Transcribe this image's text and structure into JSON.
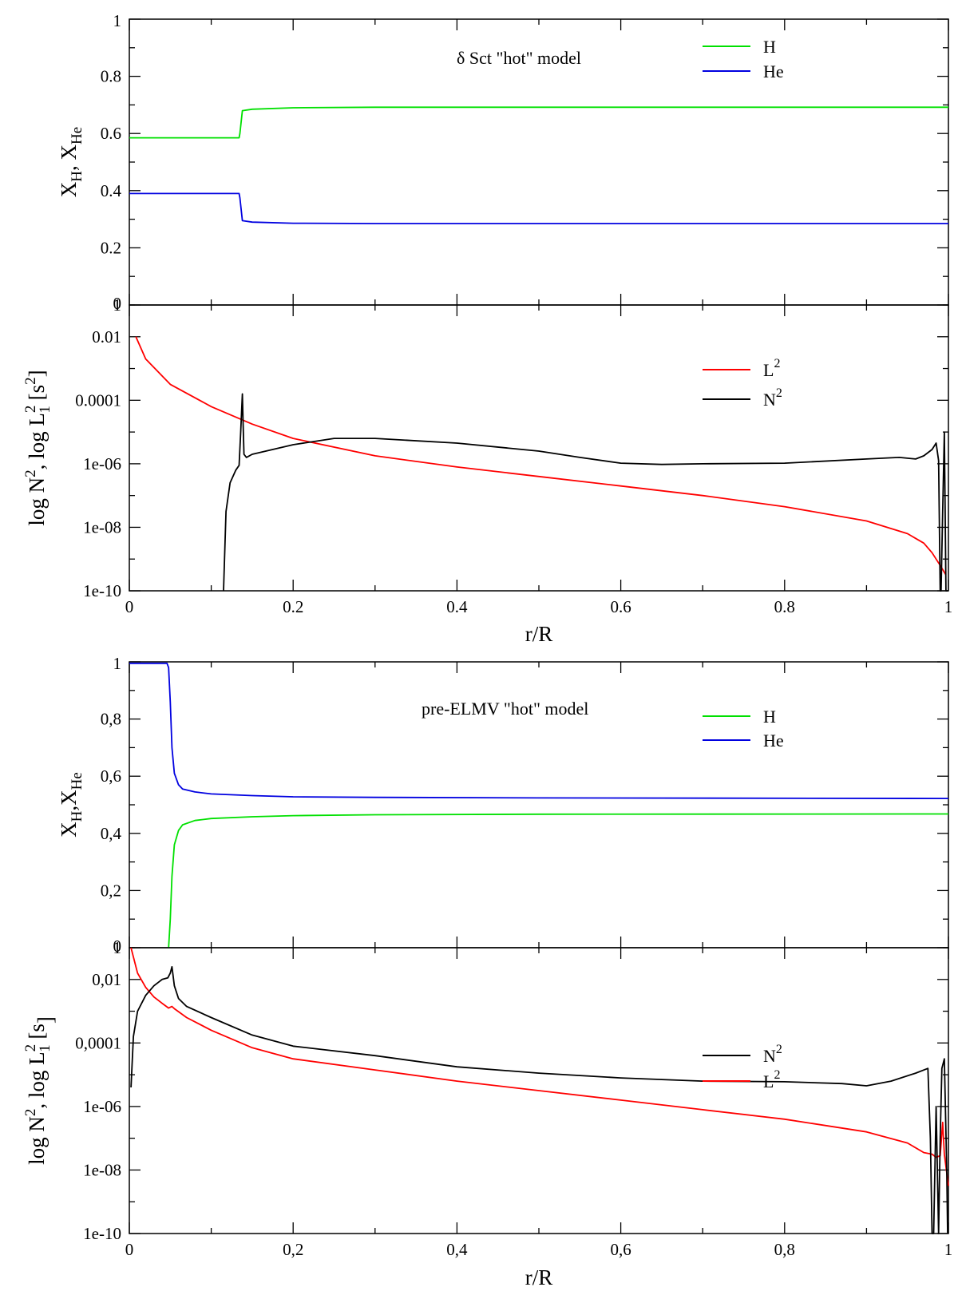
{
  "chart_data": [
    {
      "id": "p1",
      "type": "line",
      "title": "δ Sct \"hot\" model",
      "xlabel": "",
      "ylabel": {
        "base1": "X",
        "sub1": "H",
        "sep": ", X",
        "sub2": "He"
      },
      "xlim": [
        0,
        1
      ],
      "ylim": [
        0,
        1
      ],
      "yscale": "linear",
      "xticks": [],
      "yticks": [
        {
          "v": 0,
          "t": "0"
        },
        {
          "v": 0.2,
          "t": "0.2"
        },
        {
          "v": 0.4,
          "t": "0.4"
        },
        {
          "v": 0.6,
          "t": "0.6"
        },
        {
          "v": 0.8,
          "t": "0.8"
        },
        {
          "v": 1,
          "t": "1"
        }
      ],
      "legend": [
        {
          "label": "H",
          "sup": "",
          "color": "#00e000"
        },
        {
          "label": "He",
          "sup": "",
          "color": "#0000e0"
        }
      ],
      "legend_placement": "top-right",
      "series": [
        {
          "name": "H",
          "color": "#00e000",
          "x": [
            0,
            0.134,
            0.135,
            0.138,
            0.15,
            0.2,
            0.3,
            0.5,
            1.0
          ],
          "y": [
            0.585,
            0.585,
            0.6,
            0.68,
            0.685,
            0.69,
            0.692,
            0.692,
            0.692
          ]
        },
        {
          "name": "He",
          "color": "#0000e0",
          "x": [
            0,
            0.134,
            0.135,
            0.138,
            0.15,
            0.2,
            0.3,
            0.5,
            1.0
          ],
          "y": [
            0.39,
            0.39,
            0.375,
            0.295,
            0.29,
            0.286,
            0.285,
            0.285,
            0.285
          ]
        }
      ]
    },
    {
      "id": "p2",
      "type": "line",
      "title": "",
      "xlabel": "r/R",
      "ylabel": {
        "main": "log N",
        "sup1": "2",
        "mid": ", log L",
        "sup2": "2",
        "sub2": "1",
        "unit": " [s",
        "sup3": "2",
        "end": "]"
      },
      "xlim": [
        0,
        1
      ],
      "ylim": [
        -10,
        -1
      ],
      "yscale": "log10",
      "xticks": [
        {
          "v": 0,
          "t": "0"
        },
        {
          "v": 0.2,
          "t": "0.2"
        },
        {
          "v": 0.4,
          "t": "0.4"
        },
        {
          "v": 0.6,
          "t": "0.6"
        },
        {
          "v": 0.8,
          "t": "0.8"
        },
        {
          "v": 1,
          "t": "1"
        }
      ],
      "yticks": [
        {
          "v": -10,
          "t": "1e-10"
        },
        {
          "v": -8,
          "t": "1e-08"
        },
        {
          "v": -6,
          "t": "1e-06"
        },
        {
          "v": -4,
          "t": "0.0001"
        },
        {
          "v": -2,
          "t": "0.01"
        },
        {
          "v": -1,
          "t": "1"
        }
      ],
      "legend": [
        {
          "label": "L",
          "sup": "2",
          "color": "#ff0000"
        },
        {
          "label": "N",
          "sup": "2",
          "color": "#000000"
        }
      ],
      "legend_placement": "top-right",
      "series": [
        {
          "name": "L2",
          "color": "#ff0000",
          "x": [
            0.008,
            0.02,
            0.05,
            0.1,
            0.15,
            0.2,
            0.3,
            0.4,
            0.5,
            0.6,
            0.7,
            0.8,
            0.9,
            0.95,
            0.97,
            0.98,
            0.99,
            0.997
          ],
          "y": [
            -2.0,
            -2.7,
            -3.5,
            -4.2,
            -4.75,
            -5.2,
            -5.75,
            -6.1,
            -6.4,
            -6.7,
            -7.0,
            -7.35,
            -7.8,
            -8.2,
            -8.5,
            -8.8,
            -9.2,
            -9.5
          ]
        },
        {
          "name": "N2",
          "color": "#000000",
          "x": [
            0.115,
            0.118,
            0.123,
            0.13,
            0.134,
            0.136,
            0.138,
            0.139,
            0.14,
            0.143,
            0.15,
            0.2,
            0.25,
            0.3,
            0.4,
            0.5,
            0.55,
            0.6,
            0.65,
            0.7,
            0.8,
            0.9,
            0.94,
            0.96,
            0.97,
            0.98,
            0.985,
            0.988,
            0.99,
            0.991,
            0.993,
            0.995,
            0.997,
            0.999
          ],
          "y": [
            -10,
            -7.5,
            -6.6,
            -6.2,
            -6.05,
            -5.0,
            -3.8,
            -4.8,
            -5.7,
            -5.8,
            -5.7,
            -5.4,
            -5.2,
            -5.2,
            -5.35,
            -5.6,
            -5.8,
            -5.98,
            -6.02,
            -6.0,
            -5.98,
            -5.85,
            -5.8,
            -5.85,
            -5.75,
            -5.55,
            -5.35,
            -5.9,
            -10,
            -10,
            -7.5,
            -5.0,
            -10,
            -10
          ]
        }
      ]
    },
    {
      "id": "p3",
      "type": "line",
      "title": "pre-ELMV \"hot\" model",
      "xlabel": "",
      "ylabel": {
        "base1": "X",
        "sub1": "H",
        "sep": ",X",
        "sub2": "He"
      },
      "xlim": [
        0,
        1
      ],
      "ylim": [
        0,
        1
      ],
      "yscale": "linear",
      "xticks": [],
      "yticks": [
        {
          "v": 0,
          "t": "0"
        },
        {
          "v": 0.2,
          "t": "0,2"
        },
        {
          "v": 0.4,
          "t": "0,4"
        },
        {
          "v": 0.6,
          "t": "0,6"
        },
        {
          "v": 0.8,
          "t": "0,8"
        },
        {
          "v": 1,
          "t": "1"
        }
      ],
      "legend": [
        {
          "label": "H",
          "sup": "",
          "color": "#00e000"
        },
        {
          "label": "He",
          "sup": "",
          "color": "#0000e0"
        }
      ],
      "legend_placement": "top-right",
      "series": [
        {
          "name": "H",
          "color": "#00e000",
          "x": [
            0.048,
            0.05,
            0.052,
            0.055,
            0.06,
            0.065,
            0.08,
            0.1,
            0.15,
            0.2,
            0.3,
            0.5,
            1.0
          ],
          "y": [
            0,
            0.1,
            0.25,
            0.36,
            0.41,
            0.43,
            0.445,
            0.452,
            0.458,
            0.462,
            0.465,
            0.467,
            0.468
          ]
        },
        {
          "name": "He",
          "color": "#0000e0",
          "x": [
            0,
            0.046,
            0.048,
            0.05,
            0.052,
            0.055,
            0.06,
            0.065,
            0.08,
            0.1,
            0.15,
            0.2,
            0.3,
            0.5,
            1.0
          ],
          "y": [
            0.995,
            0.995,
            0.98,
            0.86,
            0.7,
            0.61,
            0.57,
            0.555,
            0.545,
            0.538,
            0.532,
            0.528,
            0.526,
            0.524,
            0.522
          ]
        }
      ]
    },
    {
      "id": "p4",
      "type": "line",
      "title": "",
      "xlabel": "r/R",
      "ylabel": {
        "main": "log N",
        "sup1": "2",
        "mid": ", log L",
        "sup2": "2",
        "sub2": "1",
        "unit": " [s",
        "sup3": "",
        "end": "]"
      },
      "xlim": [
        0,
        1
      ],
      "ylim": [
        -10,
        -1
      ],
      "yscale": "log10",
      "xticks": [
        {
          "v": 0,
          "t": "0"
        },
        {
          "v": 0.2,
          "t": "0,2"
        },
        {
          "v": 0.4,
          "t": "0,4"
        },
        {
          "v": 0.6,
          "t": "0,6"
        },
        {
          "v": 0.8,
          "t": "0,8"
        },
        {
          "v": 1,
          "t": "1"
        }
      ],
      "yticks": [
        {
          "v": -10,
          "t": "1e-10"
        },
        {
          "v": -8,
          "t": "1e-08"
        },
        {
          "v": -6,
          "t": "1e-06"
        },
        {
          "v": -4,
          "t": "0,0001"
        },
        {
          "v": -2,
          "t": "0,01"
        },
        {
          "v": -1,
          "t": "1"
        }
      ],
      "legend": [
        {
          "label": "N",
          "sup": "2",
          "color": "#000000"
        },
        {
          "label": "L",
          "sup": "2",
          "color": "#ff0000"
        }
      ],
      "legend_placement": "right",
      "series": [
        {
          "name": "L2",
          "color": "#ff0000",
          "x": [
            0.002,
            0.01,
            0.02,
            0.03,
            0.04,
            0.048,
            0.052,
            0.055,
            0.07,
            0.1,
            0.15,
            0.2,
            0.3,
            0.4,
            0.5,
            0.6,
            0.7,
            0.8,
            0.9,
            0.95,
            0.97,
            0.98,
            0.985,
            0.99,
            0.993,
            0.995,
            1.0
          ],
          "y": [
            -1.0,
            -1.8,
            -2.25,
            -2.55,
            -2.75,
            -2.9,
            -2.85,
            -2.92,
            -3.2,
            -3.6,
            -4.15,
            -4.5,
            -4.85,
            -5.2,
            -5.5,
            -5.8,
            -6.1,
            -6.4,
            -6.8,
            -7.15,
            -7.45,
            -7.5,
            -7.6,
            -7.55,
            -6.5,
            -7.5,
            -8.5
          ]
        },
        {
          "name": "N2",
          "color": "#000000",
          "x": [
            0.002,
            0.005,
            0.01,
            0.02,
            0.03,
            0.04,
            0.047,
            0.05,
            0.052,
            0.055,
            0.06,
            0.07,
            0.1,
            0.15,
            0.2,
            0.3,
            0.4,
            0.5,
            0.6,
            0.7,
            0.8,
            0.87,
            0.9,
            0.93,
            0.96,
            0.975,
            0.978,
            0.98,
            0.982,
            0.985,
            0.988,
            0.99,
            0.992,
            0.995,
            0.998,
            0.999
          ],
          "y": [
            -5.4,
            -3.8,
            -3.0,
            -2.5,
            -2.2,
            -2.0,
            -1.95,
            -1.8,
            -1.6,
            -2.2,
            -2.6,
            -2.85,
            -3.2,
            -3.75,
            -4.1,
            -4.4,
            -4.75,
            -4.95,
            -5.1,
            -5.2,
            -5.22,
            -5.28,
            -5.35,
            -5.2,
            -4.95,
            -4.8,
            -7.0,
            -10,
            -10,
            -6.0,
            -10,
            -7.0,
            -4.8,
            -4.5,
            -8.0,
            -10
          ]
        }
      ]
    }
  ]
}
